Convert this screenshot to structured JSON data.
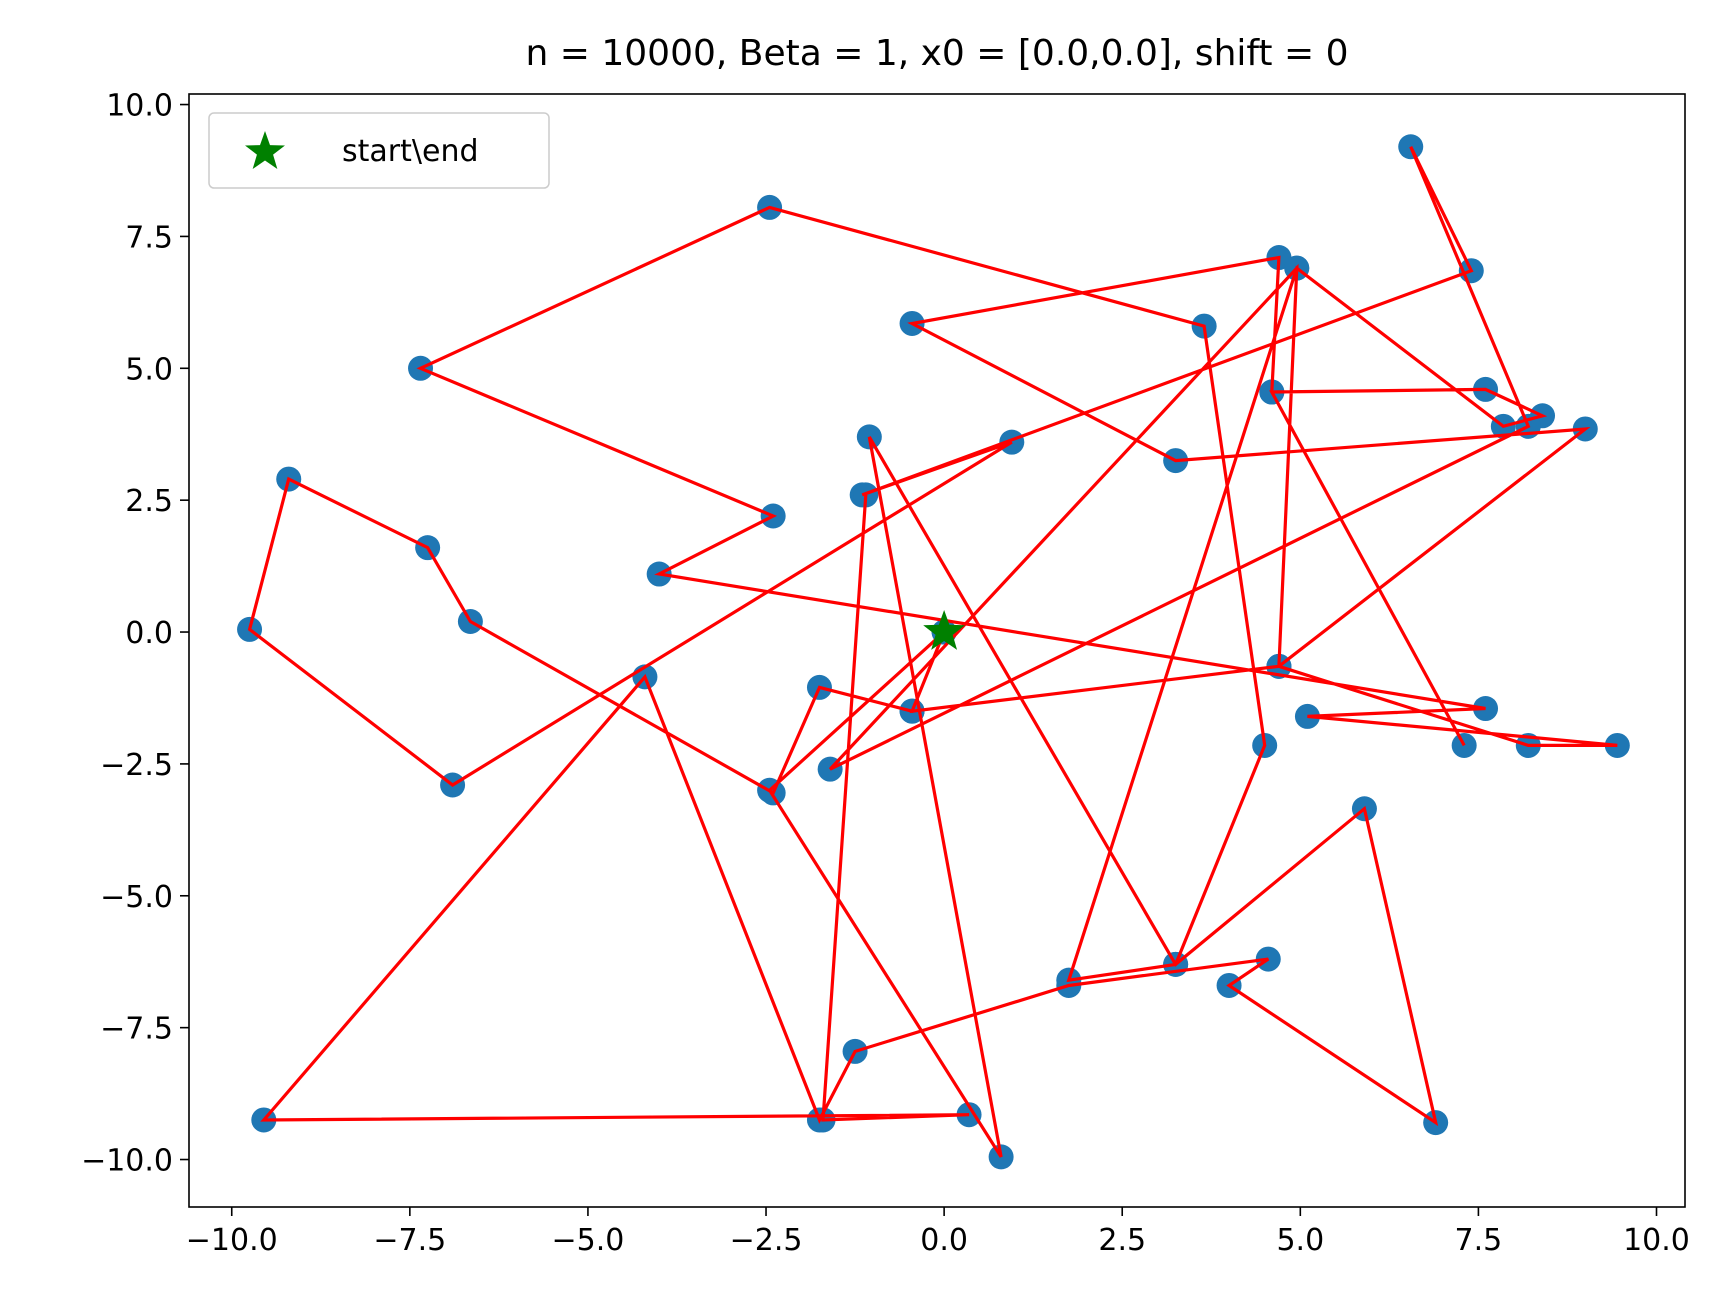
{
  "chart_data": {
    "type": "scatter",
    "title": "n = 10000, Beta = 1, x0 = [0.0,0.0], shift = 0",
    "xlabel": "",
    "ylabel": "",
    "xlim": [
      -10.6,
      10.4
    ],
    "ylim": [
      -10.9,
      10.2
    ],
    "xticks": [
      -10.0,
      -7.5,
      -5.0,
      -2.5,
      0.0,
      2.5,
      5.0,
      7.5,
      10.0
    ],
    "yticks": [
      -10.0,
      -7.5,
      -5.0,
      -2.5,
      0.0,
      2.5,
      5.0,
      7.5,
      10.0
    ],
    "xtick_labels": [
      "−10.0",
      "−7.5",
      "−5.0",
      "−2.5",
      "0.0",
      "2.5",
      "5.0",
      "7.5",
      "10.0"
    ],
    "ytick_labels": [
      "10.0",
      "7.5",
      "5.0",
      "2.5",
      "0.0",
      "−2.5",
      "−5.0",
      "−7.5",
      "−10.0"
    ],
    "grid": false,
    "legend_position": "upper-left",
    "legend": [
      {
        "label": "start\\end",
        "marker": "star",
        "color": "#008000"
      }
    ],
    "colors": {
      "points": "#1f77b4",
      "path": "#ff0000",
      "start": "#008000"
    },
    "start_point": [
      0.0,
      0.0
    ],
    "series": [
      {
        "type": "line+scatter",
        "x": [
          0.0,
          -0.45,
          4.7,
          9.0,
          3.25,
          -0.45,
          4.7,
          4.6,
          7.3,
          4.6,
          7.6,
          8.4,
          7.85,
          4.95,
          1.75,
          3.25,
          4.5,
          3.65,
          -2.45,
          -7.35,
          -2.4,
          -4.0,
          7.6,
          5.1,
          9.45,
          8.2,
          4.7,
          4.95,
          -1.6,
          8.2,
          6.55,
          7.4,
          -1.15,
          0.95,
          -6.9,
          -9.75,
          -9.2,
          -7.25,
          -6.65,
          -2.4,
          -1.75,
          -0.45,
          0.0,
          -2.45,
          0.8,
          -1.05,
          3.25,
          5.9,
          6.9,
          4.0,
          4.55,
          1.75,
          -1.25,
          -1.75,
          -4.2,
          -9.55,
          0.35,
          -1.7,
          -1.1
        ],
        "y": [
          0.0,
          -1.5,
          -0.65,
          3.85,
          3.25,
          5.85,
          7.1,
          4.55,
          -2.15,
          4.55,
          4.6,
          4.1,
          3.9,
          6.9,
          -6.6,
          -6.3,
          -2.15,
          5.8,
          8.05,
          5.0,
          2.2,
          1.1,
          -1.45,
          -1.6,
          -2.15,
          -2.15,
          -0.65,
          6.9,
          -2.6,
          3.9,
          9.2,
          6.85,
          2.6,
          3.6,
          -2.9,
          0.05,
          2.9,
          1.6,
          0.2,
          -3.05,
          -1.05,
          -1.5,
          0.0,
          -3.0,
          -9.95,
          3.7,
          -6.3,
          -3.35,
          -9.3,
          -6.7,
          -6.2,
          -6.7,
          -7.95,
          -9.25,
          -0.85,
          -9.25,
          -9.15,
          -9.25,
          2.6
        ]
      }
    ]
  }
}
